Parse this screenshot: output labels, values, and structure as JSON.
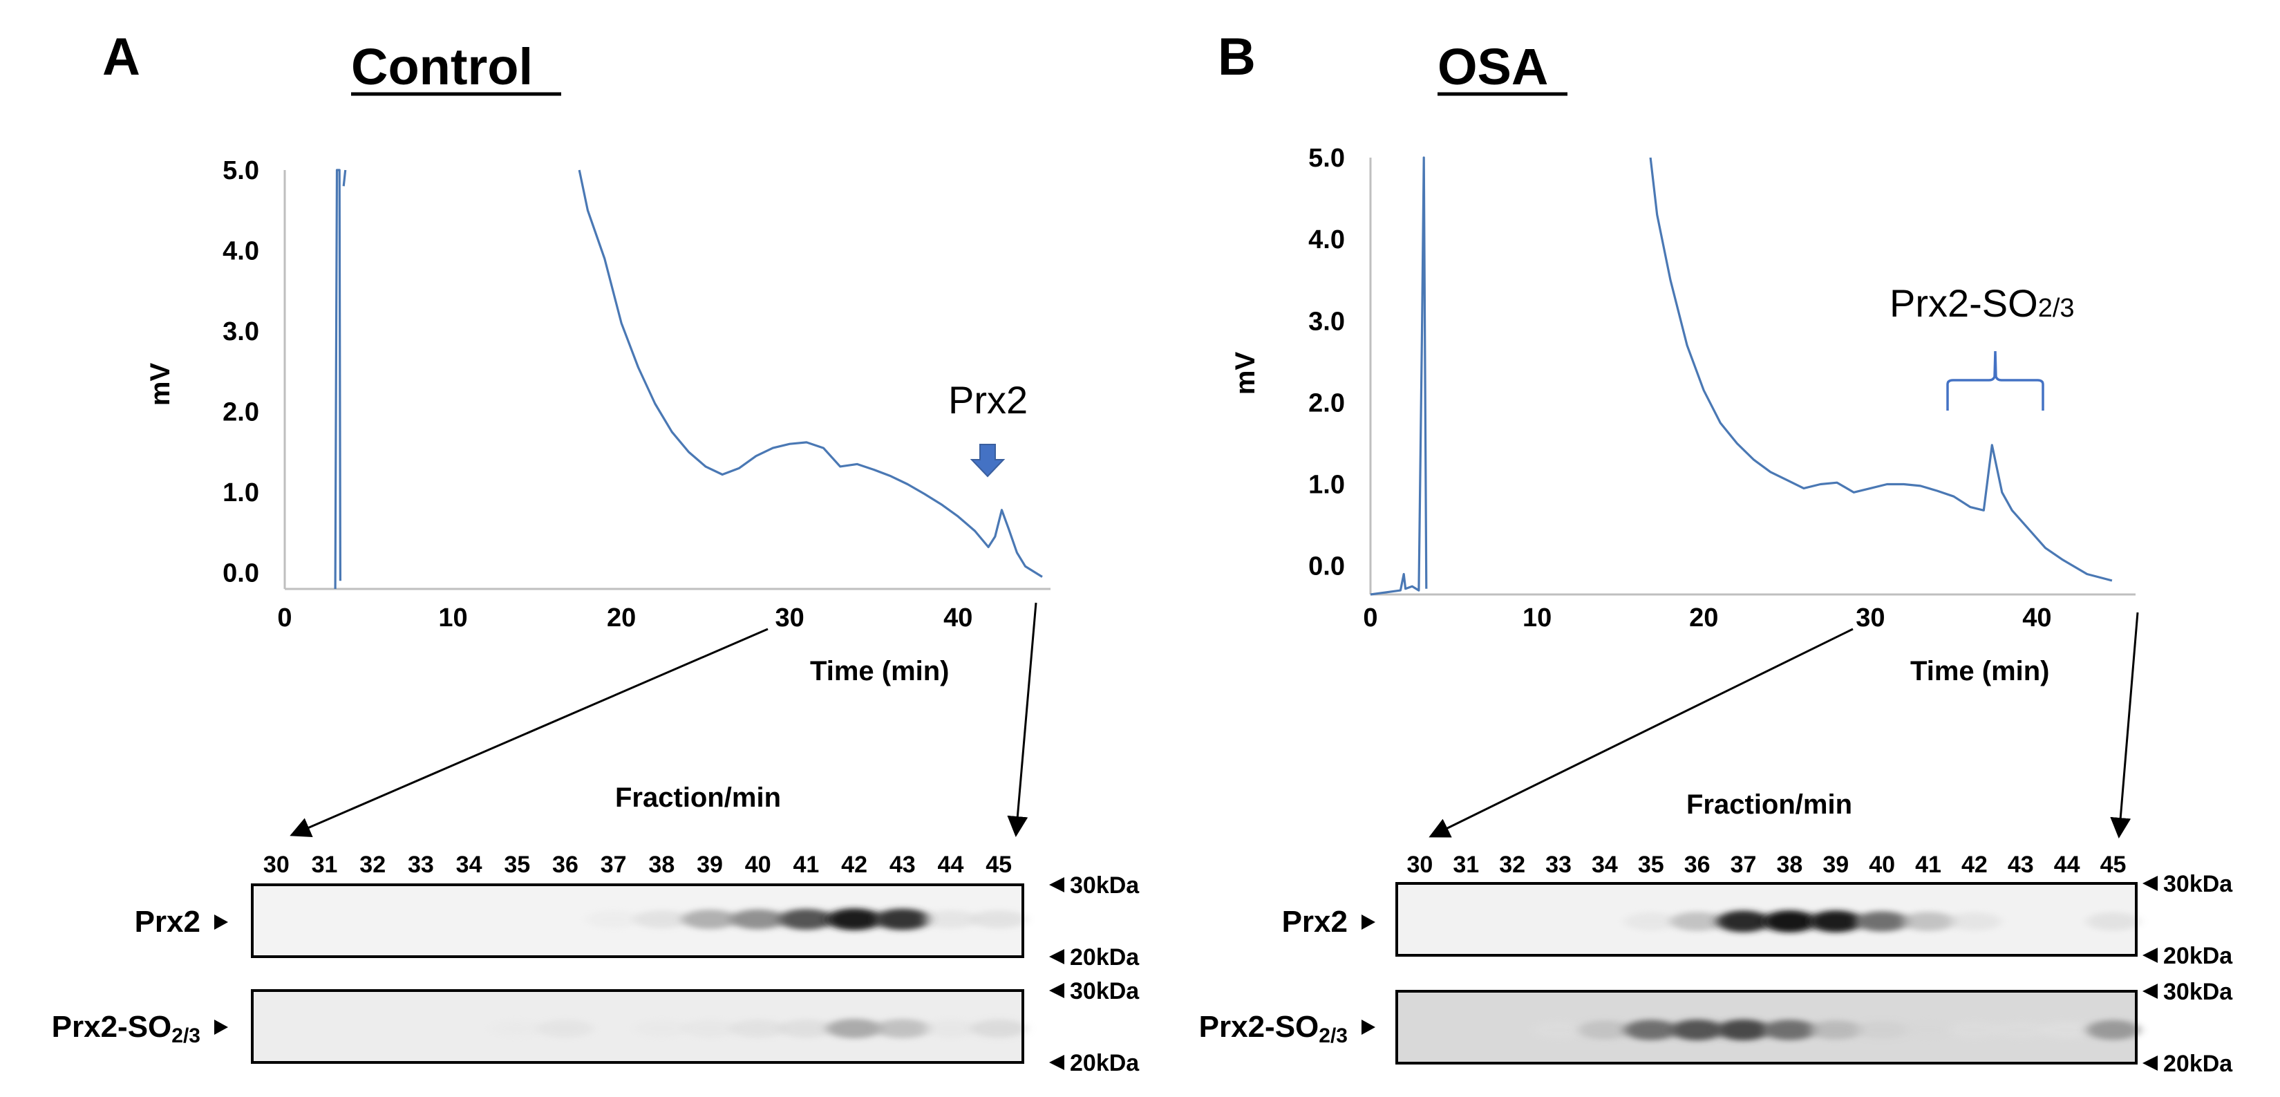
{
  "chart_data": [
    {
      "panel": "A",
      "type": "line",
      "title": "Control",
      "xlabel": "Time (min)",
      "ylabel": "mV",
      "xlim": [
        0,
        45
      ],
      "ylim": [
        -0.2,
        5.0
      ],
      "xticks": [
        0,
        10,
        20,
        30,
        40
      ],
      "yticks": [
        "5.0",
        "4.0",
        "3.0",
        "2.0",
        "1.0",
        "0.0"
      ],
      "series": [
        {
          "name": "chromatogram",
          "color": "#4a78b4",
          "segments": [
            [
              [
                3.0,
                -0.2
              ],
              [
                3.05,
                2.5
              ],
              [
                3.1,
                5.0
              ],
              [
                3.25,
                5.0
              ],
              [
                3.3,
                -0.1
              ]
            ],
            [
              [
                3.5,
                4.8
              ],
              [
                3.6,
                5.0
              ]
            ],
            [
              [
                17.5,
                5.0
              ],
              [
                18.0,
                4.5
              ],
              [
                19.0,
                3.9
              ],
              [
                20.0,
                3.1
              ],
              [
                21.0,
                2.55
              ],
              [
                22.0,
                2.1
              ],
              [
                23.0,
                1.75
              ],
              [
                24.0,
                1.5
              ],
              [
                25.0,
                1.32
              ],
              [
                26.0,
                1.22
              ],
              [
                27.0,
                1.3
              ],
              [
                28.0,
                1.45
              ],
              [
                29.0,
                1.55
              ],
              [
                30.0,
                1.6
              ],
              [
                31.0,
                1.62
              ],
              [
                32.0,
                1.55
              ],
              [
                33.0,
                1.32
              ],
              [
                34.0,
                1.35
              ],
              [
                35.0,
                1.28
              ],
              [
                36.0,
                1.2
              ],
              [
                37.0,
                1.1
              ],
              [
                38.0,
                0.98
              ],
              [
                39.0,
                0.85
              ],
              [
                40.0,
                0.7
              ],
              [
                41.0,
                0.52
              ],
              [
                41.8,
                0.32
              ],
              [
                42.2,
                0.45
              ],
              [
                42.6,
                0.78
              ],
              [
                43.0,
                0.55
              ],
              [
                43.5,
                0.25
              ],
              [
                44.0,
                0.08
              ],
              [
                45.0,
                -0.05
              ]
            ]
          ]
        }
      ],
      "annotations": [
        {
          "text": "Prx2",
          "x": 42.6,
          "marker": "arrow-down"
        }
      ]
    },
    {
      "panel": "B",
      "type": "line",
      "title": "OSA",
      "xlabel": "Time (min)",
      "ylabel": "mV",
      "xlim": [
        0,
        45
      ],
      "ylim": [
        -0.35,
        5.0
      ],
      "xticks": [
        0,
        10,
        20,
        30,
        40
      ],
      "yticks": [
        "5.0",
        "4.0",
        "3.0",
        "2.0",
        "1.0",
        "0.0"
      ],
      "series": [
        {
          "name": "chromatogram",
          "color": "#4a78b4",
          "segments": [
            [
              [
                0.0,
                -0.35
              ],
              [
                1.8,
                -0.3
              ],
              [
                2.0,
                -0.1
              ],
              [
                2.1,
                -0.28
              ],
              [
                2.5,
                -0.25
              ],
              [
                2.9,
                -0.3
              ],
              [
                3.1,
                3.0
              ],
              [
                3.2,
                5.0
              ],
              [
                3.35,
                -0.28
              ]
            ],
            [
              [
                16.8,
                5.0
              ],
              [
                17.2,
                4.3
              ],
              [
                18.0,
                3.5
              ],
              [
                19.0,
                2.7
              ],
              [
                20.0,
                2.15
              ],
              [
                21.0,
                1.75
              ],
              [
                22.0,
                1.5
              ],
              [
                23.0,
                1.3
              ],
              [
                24.0,
                1.15
              ],
              [
                25.0,
                1.05
              ],
              [
                26.0,
                0.95
              ],
              [
                27.0,
                1.0
              ],
              [
                28.0,
                1.02
              ],
              [
                29.0,
                0.9
              ],
              [
                30.0,
                0.95
              ],
              [
                31.0,
                1.0
              ],
              [
                32.0,
                1.0
              ],
              [
                33.0,
                0.98
              ],
              [
                34.0,
                0.92
              ],
              [
                35.0,
                0.85
              ],
              [
                36.0,
                0.72
              ],
              [
                36.8,
                0.68
              ],
              [
                37.3,
                1.48
              ],
              [
                37.9,
                0.9
              ],
              [
                38.5,
                0.68
              ],
              [
                39.5,
                0.45
              ],
              [
                40.5,
                0.22
              ],
              [
                41.5,
                0.08
              ],
              [
                43.0,
                -0.1
              ],
              [
                44.5,
                -0.18
              ]
            ]
          ]
        }
      ],
      "annotations": [
        {
          "text": "Prx2-SO",
          "sub": "2/3",
          "x_range": [
            33.5,
            39.0
          ],
          "marker": "bracket"
        }
      ]
    }
  ],
  "blots": [
    {
      "panel": "A",
      "title": "Fraction/min",
      "fractions": [
        "30",
        "31",
        "32",
        "33",
        "34",
        "35",
        "36",
        "37",
        "38",
        "39",
        "40",
        "41",
        "42",
        "43",
        "44",
        "45"
      ],
      "rows": [
        {
          "label": "Prx2",
          "label_sub": "",
          "band_intensity": [
            0.0,
            0.0,
            0.0,
            0.0,
            0.0,
            0.0,
            0.0,
            0.03,
            0.12,
            0.38,
            0.5,
            0.7,
            0.95,
            0.85,
            0.1,
            0.12
          ],
          "upper_marker": "30kDa",
          "lower_marker": "20kDa"
        },
        {
          "label": "Prx2-SO",
          "label_sub": "2/3",
          "band_intensity": [
            0.0,
            0.0,
            0.0,
            0.0,
            0.0,
            0.02,
            0.08,
            0.0,
            0.03,
            0.05,
            0.1,
            0.12,
            0.4,
            0.3,
            0.05,
            0.15
          ],
          "upper_marker": "30kDa",
          "lower_marker": "20kDa"
        }
      ]
    },
    {
      "panel": "B",
      "title": "Fraction/min",
      "fractions": [
        "30",
        "31",
        "32",
        "33",
        "34",
        "35",
        "36",
        "37",
        "38",
        "39",
        "40",
        "41",
        "42",
        "43",
        "44",
        "45"
      ],
      "rows": [
        {
          "label": "Prx2",
          "label_sub": "",
          "band_intensity": [
            0.0,
            0.0,
            0.0,
            0.0,
            0.0,
            0.08,
            0.3,
            0.9,
            1.0,
            0.95,
            0.6,
            0.3,
            0.1,
            0.0,
            0.0,
            0.12
          ],
          "upper_marker": "30kDa",
          "lower_marker": "20kDa"
        },
        {
          "label": "Prx2-SO",
          "label_sub": "2/3",
          "band_intensity": [
            0.0,
            0.0,
            0.0,
            0.05,
            0.25,
            0.6,
            0.7,
            0.75,
            0.6,
            0.3,
            0.15,
            0.1,
            0.05,
            0.05,
            0.03,
            0.45
          ],
          "upper_marker": "30kDa",
          "lower_marker": "20kDa"
        }
      ]
    }
  ]
}
